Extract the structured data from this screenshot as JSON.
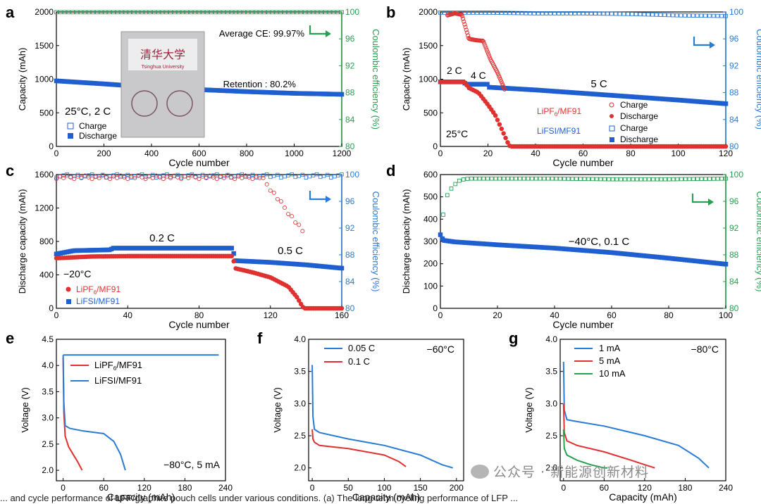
{
  "caption_text": "... and cycle performance of LFP/graphite pouch cells under various conditions. (a) The long-term cycling performance of LFP ...",
  "watermark": {
    "text": "公众号 · 新能源创新材料",
    "icon": "wechat-logo-icon"
  },
  "colors": {
    "blue": "#1f5fd0",
    "red": "#e03030",
    "green": "#27a050",
    "axis": "#000000",
    "rightBlue": "#2a7bd4"
  },
  "chart_data": [
    {
      "panel": "a",
      "type": "scatter",
      "xlabel": "Cycle number",
      "ylabel": "Capacity (mAh)",
      "y2label": "Coulombic efficiency (%)",
      "xlim": [
        0,
        1200
      ],
      "ylim": [
        0,
        2000
      ],
      "y2lim": [
        80,
        100
      ],
      "xticks": [
        "0",
        "200",
        "400",
        "600",
        "800",
        "1000",
        "1200"
      ],
      "yticks": [
        "0",
        "500",
        "1000",
        "1500",
        "2000"
      ],
      "y2ticks": [
        "80",
        "84",
        "88",
        "92",
        "96",
        "100"
      ],
      "legend": [
        "Charge",
        "Discharge"
      ],
      "annotations": {
        "ce": "Average CE: 99.97%",
        "retention": "Retention : 80.2%",
        "condition": "25°C, 2 C",
        "logo_text": "Tsinghua University"
      },
      "series": [
        {
          "name": "Discharge",
          "color": "#1f5fd0",
          "x": [
            0,
            200,
            400,
            600,
            800,
            1000,
            1200
          ],
          "values": [
            975,
            930,
            880,
            845,
            815,
            790,
            775
          ]
        },
        {
          "name": "Coulombic efficiency",
          "color": "#27a050",
          "x": [
            0,
            200,
            400,
            600,
            800,
            1000,
            1200
          ],
          "values": [
            99.97,
            99.97,
            99.97,
            99.97,
            99.97,
            99.97,
            99.97
          ]
        }
      ]
    },
    {
      "panel": "b",
      "type": "scatter",
      "xlabel": "Cycle number",
      "ylabel": "Capacity (mAh)",
      "y2label": "Coulombic efficiency (%)",
      "xlim": [
        0,
        120
      ],
      "ylim": [
        0,
        2000
      ],
      "y2lim": [
        80,
        100
      ],
      "xticks": [
        "0",
        "20",
        "40",
        "60",
        "80",
        "100",
        "120"
      ],
      "yticks": [
        "0",
        "500",
        "1000",
        "1500",
        "2000"
      ],
      "y2ticks": [
        "80",
        "84",
        "88",
        "92",
        "96",
        "100"
      ],
      "annotations": {
        "rate1": "2 C",
        "rate2": "4 C",
        "rate3": "5 C",
        "temp": "25°C"
      },
      "legend_groups": [
        {
          "label": "LiPF",
          "sub": "6",
          "suffix": "/MF91",
          "items": [
            "Charge",
            "Discharge"
          ],
          "color": "#e03030"
        },
        {
          "label": "LiFSI/MF91",
          "items": [
            "Charge",
            "Discharge"
          ],
          "color": "#1f5fd0"
        }
      ],
      "series": [
        {
          "name": "LiFSI/MF91 discharge",
          "color": "#1f5fd0",
          "x": [
            0,
            10,
            10.5,
            20,
            20.5,
            40,
            60,
            80,
            100,
            120
          ],
          "values": [
            960,
            960,
            925,
            925,
            880,
            840,
            790,
            740,
            690,
            635
          ]
        },
        {
          "name": "LiPF6/MF91 discharge",
          "color": "#e03030",
          "x": [
            0,
            10,
            12,
            16,
            20,
            23,
            26,
            28,
            29,
            30,
            120
          ],
          "values": [
            960,
            960,
            870,
            800,
            620,
            470,
            240,
            80,
            10,
            0,
            0
          ]
        },
        {
          "name": "LiFSI/MF91 CE",
          "color": "#2a7bd4",
          "x": [
            0,
            20,
            40,
            60,
            80,
            100,
            120
          ],
          "values": [
            99.9,
            99.9,
            99.8,
            99.8,
            99.7,
            99.5,
            99.4
          ]
        },
        {
          "name": "LiPF6/MF91 CE",
          "color": "#e03030",
          "x": [
            3,
            6,
            9,
            12,
            15,
            18,
            21,
            24,
            27
          ],
          "values": [
            99.5,
            99.8,
            99.6,
            96.0,
            95.8,
            95.7,
            93.0,
            91.0,
            88.5
          ]
        }
      ]
    },
    {
      "panel": "c",
      "type": "scatter",
      "xlabel": "Cycle number",
      "ylabel": "Discharge capacity (mAh)",
      "y2label": "Coulombic efficiency (%)",
      "xlim": [
        0,
        160
      ],
      "ylim": [
        0,
        1600
      ],
      "y2lim": [
        80,
        100
      ],
      "xticks": [
        "0",
        "40",
        "80",
        "120",
        "160"
      ],
      "yticks": [
        "0",
        "400",
        "800",
        "1200",
        "1600"
      ],
      "y2ticks": [
        "80",
        "84",
        "88",
        "92",
        "96",
        "100"
      ],
      "annotations": {
        "rate1": "0.2 C",
        "rate2": "0.5 C",
        "temp": "−20°C"
      },
      "legend": [
        "LiPF6/MF91",
        "LiFSI/MF91"
      ],
      "series": [
        {
          "name": "LiFSI/MF91",
          "color": "#1f5fd0",
          "x": [
            0,
            10,
            30,
            32,
            50,
            80,
            99,
            100,
            120,
            140,
            160
          ],
          "values": [
            650,
            690,
            700,
            720,
            720,
            720,
            720,
            570,
            550,
            520,
            480
          ]
        },
        {
          "name": "LiPF6/MF91",
          "color": "#e03030",
          "x": [
            0,
            20,
            40,
            60,
            80,
            99,
            100,
            110,
            120,
            130,
            135,
            138,
            139,
            160
          ],
          "values": [
            600,
            620,
            625,
            625,
            625,
            625,
            480,
            430,
            370,
            260,
            130,
            20,
            0,
            0
          ]
        }
      ]
    },
    {
      "panel": "d",
      "type": "scatter",
      "xlabel": "Cycle number",
      "ylabel": "Discharge capacity (mAh)",
      "y2label": "Coulombic efficiency (%)",
      "xlim": [
        0,
        100
      ],
      "ylim": [
        0,
        600
      ],
      "y2lim": [
        80,
        100
      ],
      "xticks": [
        "0",
        "20",
        "40",
        "60",
        "80",
        "100"
      ],
      "yticks": [
        "0",
        "100",
        "200",
        "300",
        "400",
        "500",
        "600"
      ],
      "y2ticks": [
        "80",
        "84",
        "88",
        "92",
        "96",
        "100"
      ],
      "annotations": {
        "condition": "−40°C, 0.1 C"
      },
      "series": [
        {
          "name": "Discharge",
          "color": "#1f5fd0",
          "x": [
            0,
            1,
            5,
            20,
            40,
            60,
            80,
            100
          ],
          "values": [
            330,
            305,
            298,
            285,
            270,
            250,
            225,
            198
          ]
        },
        {
          "name": "Coulombic efficiency",
          "color": "#27a050",
          "x": [
            1,
            2,
            3,
            5,
            7,
            10,
            20,
            40,
            60,
            80,
            100
          ],
          "values": [
            94,
            96.5,
            97.5,
            98.5,
            99.2,
            99.4,
            99.4,
            99.4,
            99.3,
            99.3,
            99.4
          ]
        }
      ]
    },
    {
      "panel": "e",
      "type": "line",
      "xlabel": "Capacity (mAh)",
      "ylabel": "Voltage (V)",
      "xlim": [
        -10,
        240
      ],
      "ylim": [
        1.8,
        4.5
      ],
      "xticks": [
        "0",
        "60",
        "120",
        "180",
        "240"
      ],
      "yticks": [
        "2.0",
        "2.5",
        "3.0",
        "3.5",
        "4.0",
        "4.5"
      ],
      "annotations": {
        "condition": "−80°C, 5 mA"
      },
      "legend": [
        {
          "label": "LiPF",
          "sub": "6",
          "suffix": "/MF91"
        },
        {
          "label": "LiFSI/MF91"
        }
      ],
      "series": [
        {
          "name": "LiPF6/MF91",
          "color": "#e03030",
          "x": [
            0,
            1,
            3,
            8,
            15,
            22,
            28
          ],
          "values": [
            4.15,
            3.1,
            2.65,
            2.45,
            2.3,
            2.15,
            2.0
          ]
        },
        {
          "name": "LiFSI/MF91",
          "color": "#2a7bd4",
          "x": [
            0,
            1,
            3,
            10,
            30,
            60,
            75,
            85,
            92
          ],
          "values": [
            4.2,
            3.3,
            2.85,
            2.8,
            2.75,
            2.7,
            2.55,
            2.3,
            2.0
          ]
        },
        {
          "name": "LiFSI/MF91 charge",
          "color": "#2a7bd4",
          "x": [
            0,
            10,
            230
          ],
          "values": [
            4.2,
            4.2,
            4.2
          ]
        }
      ]
    },
    {
      "panel": "f",
      "type": "line",
      "xlabel": "Capacity (mAh)",
      "ylabel": "Voltage (V)",
      "xlim": [
        -5,
        210
      ],
      "ylim": [
        1.8,
        4.0
      ],
      "xticks": [
        "0",
        "50",
        "100",
        "150",
        "200"
      ],
      "yticks": [
        "2.0",
        "2.5",
        "3.0",
        "3.5",
        "4.0"
      ],
      "annotations": {
        "condition": "−60°C"
      },
      "legend": [
        "0.05 C",
        "0.1 C"
      ],
      "series": [
        {
          "name": "0.05 C",
          "color": "#2a7bd4",
          "x": [
            0,
            1,
            3,
            10,
            50,
            100,
            150,
            180,
            195
          ],
          "values": [
            3.6,
            2.8,
            2.6,
            2.55,
            2.45,
            2.35,
            2.2,
            2.05,
            2.0
          ]
        },
        {
          "name": "0.1 C",
          "color": "#e03030",
          "x": [
            0,
            1,
            3,
            10,
            50,
            100,
            120,
            130
          ],
          "values": [
            2.6,
            2.45,
            2.4,
            2.35,
            2.3,
            2.2,
            2.1,
            2.02
          ]
        }
      ]
    },
    {
      "panel": "g",
      "type": "line",
      "xlabel": "Capacity (mAh)",
      "ylabel": "Voltage (V)",
      "xlim": [
        -5,
        240
      ],
      "ylim": [
        1.8,
        4.0
      ],
      "xticks": [
        "0",
        "60",
        "120",
        "180",
        "240"
      ],
      "yticks": [
        "2.0",
        "2.5",
        "3.0",
        "3.5",
        "4.0"
      ],
      "annotations": {
        "condition": "−80°C"
      },
      "legend": [
        "1 mA",
        "5 mA",
        "10 mA"
      ],
      "series": [
        {
          "name": "1 mA",
          "color": "#2a7bd4",
          "x": [
            0,
            1,
            5,
            20,
            60,
            120,
            170,
            200,
            215
          ],
          "values": [
            3.65,
            2.9,
            2.75,
            2.72,
            2.65,
            2.5,
            2.35,
            2.15,
            2.0
          ]
        },
        {
          "name": "5 mA",
          "color": "#e03030",
          "x": [
            0,
            1,
            5,
            20,
            60,
            100,
            120,
            135
          ],
          "values": [
            3.0,
            2.55,
            2.42,
            2.35,
            2.25,
            2.12,
            2.05,
            2.0
          ]
        },
        {
          "name": "10 mA",
          "color": "#27a050",
          "x": [
            0,
            1,
            5,
            20,
            40,
            60,
            65
          ],
          "values": [
            2.6,
            2.3,
            2.2,
            2.12,
            2.05,
            2.0,
            2.0
          ]
        }
      ]
    }
  ]
}
